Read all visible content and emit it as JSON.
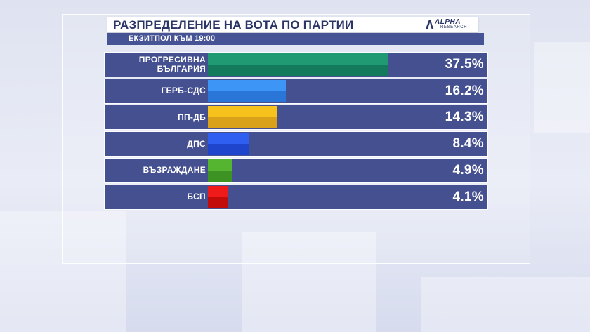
{
  "header": {
    "title": "РАЗПРЕДЕЛЕНИЕ НА ВОТА ПО ПАРТИИ",
    "logo_main": "ALPHA",
    "logo_sub": "RESEARCH"
  },
  "subheader": {
    "text": "ЕКЗИТПОЛ КЪМ 19:00"
  },
  "chart_data": {
    "type": "bar",
    "orientation": "horizontal",
    "title": "РАЗПРЕДЕЛЕНИЕ НА ВОТА ПО ПАРТИИ",
    "subtitle": "ЕКЗИТПОЛ КЪМ 19:00",
    "xlim": [
      0,
      58
    ],
    "grid": false,
    "categories": [
      {
        "label_lines": [
          "ПРОГРЕСИВНА",
          "БЪЛГАРИЯ"
        ],
        "value": 37.5,
        "value_label": "37.5%",
        "color_top": "#1f9a72",
        "color_bottom": "#137a5c"
      },
      {
        "label_lines": [
          "ГЕРБ-СДС"
        ],
        "value": 16.2,
        "value_label": "16.2%",
        "color_top": "#3d95f5",
        "color_bottom": "#2a76d8"
      },
      {
        "label_lines": [
          "ПП-ДБ"
        ],
        "value": 14.3,
        "value_label": "14.3%",
        "color_top": "#f7c21b",
        "color_bottom": "#d9a01a"
      },
      {
        "label_lines": [
          "ДПС"
        ],
        "value": 8.4,
        "value_label": "8.4%",
        "color_top": "#2f5ff0",
        "color_bottom": "#1f45cc"
      },
      {
        "label_lines": [
          "ВЪЗРАЖДАНЕ"
        ],
        "value": 4.9,
        "value_label": "4.9%",
        "color_top": "#55b531",
        "color_bottom": "#3d9224"
      },
      {
        "label_lines": [
          "БСП"
        ],
        "value": 4.1,
        "value_label": "4.1%",
        "color_top": "#ef1a1a",
        "color_bottom": "#c20b0b"
      }
    ]
  }
}
